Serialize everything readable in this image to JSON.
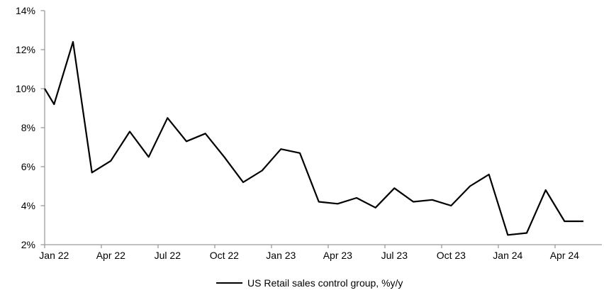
{
  "chart_data": {
    "type": "line",
    "title": "",
    "xlabel": "",
    "ylabel": "",
    "ylim": [
      2,
      14
    ],
    "grid": false,
    "background": "#ffffff",
    "axis_color": "#9b9b9b",
    "text_color": "#000000",
    "y_ticks": [
      "2%",
      "4%",
      "6%",
      "8%",
      "10%",
      "12%",
      "14%"
    ],
    "y_tick_values": [
      2,
      4,
      6,
      8,
      10,
      12,
      14
    ],
    "x_tick_labels": [
      "Jan 22",
      "Apr 22",
      "Jul 22",
      "Oct 22",
      "Jan 23",
      "Apr 23",
      "Jul 23",
      "Oct 23",
      "Jan 24",
      "Apr 24"
    ],
    "x": [
      "Jan 22",
      "Feb 22",
      "Mar 22",
      "Apr 22",
      "May 22",
      "Jun 22",
      "Jul 22",
      "Aug 22",
      "Sep 22",
      "Oct 22",
      "Nov 22",
      "Dec 22",
      "Jan 23",
      "Feb 23",
      "Mar 23",
      "Apr 23",
      "May 23",
      "Jun 23",
      "Jul 23",
      "Aug 23",
      "Sep 23",
      "Oct 23",
      "Nov 23",
      "Dec 23",
      "Jan 24",
      "Feb 24",
      "Mar 24",
      "Apr 24",
      "May 24"
    ],
    "series": [
      {
        "name": "US Retail sales control group, %y/y",
        "color": "#000000",
        "left_edge_value": 10.0,
        "values": [
          9.2,
          12.4,
          5.7,
          6.3,
          7.8,
          6.5,
          8.5,
          7.3,
          7.7,
          6.5,
          5.2,
          5.8,
          6.9,
          6.7,
          4.2,
          4.1,
          4.4,
          3.9,
          4.9,
          4.2,
          4.3,
          4.0,
          5.0,
          5.6,
          2.5,
          2.6,
          4.8,
          3.2,
          3.2
        ]
      }
    ],
    "legend": {
      "position": "bottom-center",
      "entries": [
        {
          "label": "US Retail sales control group, %y/y",
          "color": "#000000"
        }
      ]
    }
  }
}
